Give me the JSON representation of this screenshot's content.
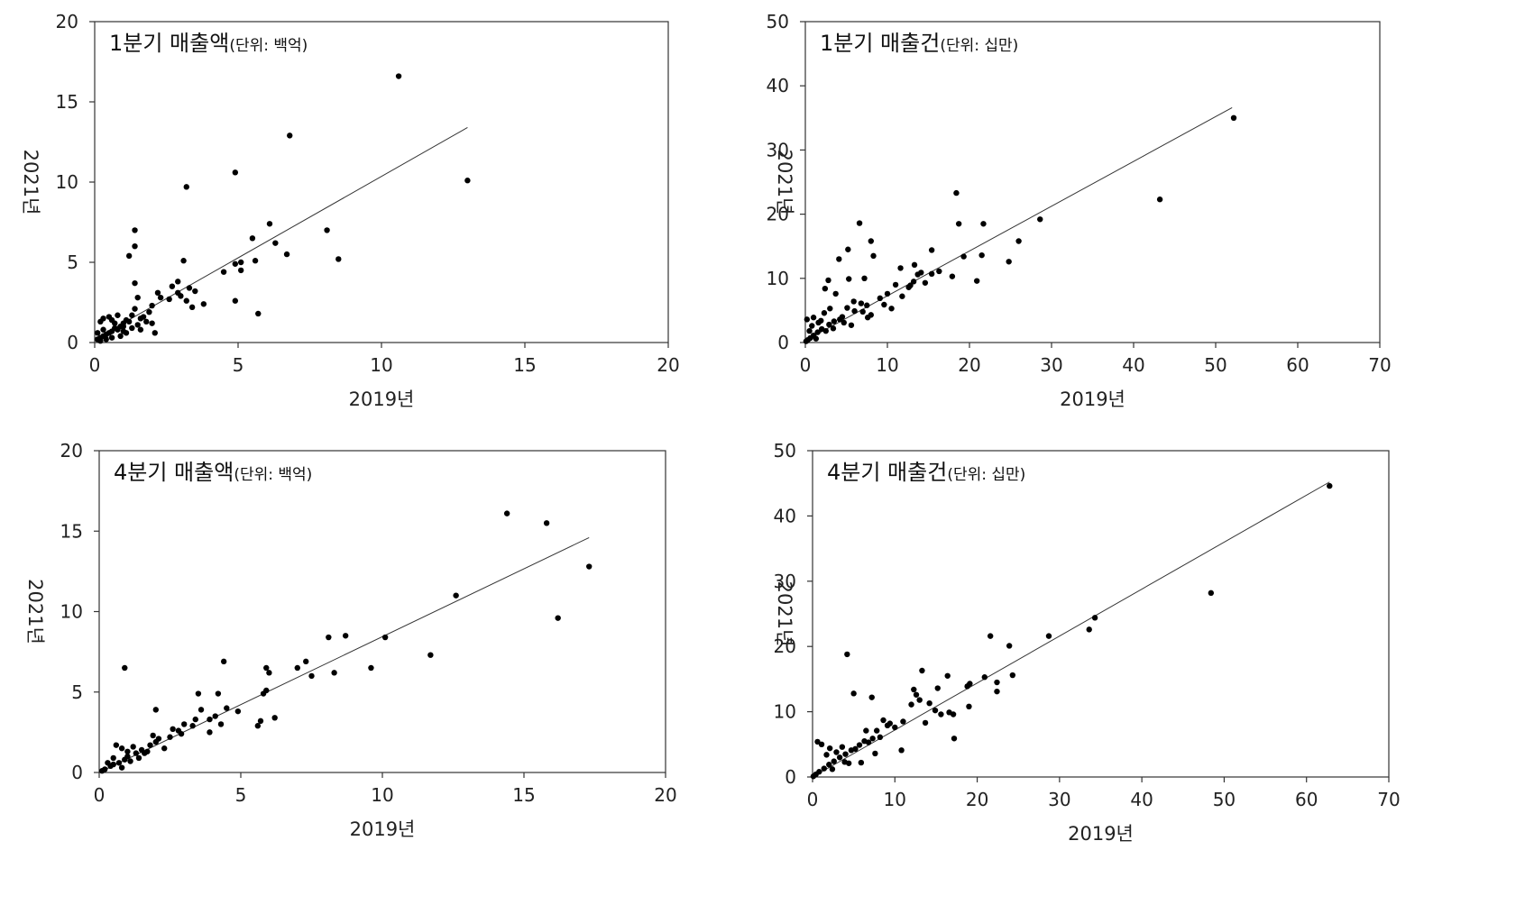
{
  "chart_data": [
    {
      "id": "q1_amount",
      "type": "scatter",
      "title": "1분기 매출액",
      "subtitle": "(단위: 백억)",
      "xlabel": "2019년",
      "ylabel": "2021년",
      "xlim": [
        0,
        20
      ],
      "ylim": [
        0,
        20
      ],
      "x_ticks": [
        "0",
        "5",
        "10",
        "15",
        "20"
      ],
      "y_ticks": [
        "0",
        "5",
        "10",
        "15",
        "20"
      ],
      "grid": false,
      "trendline": {
        "x": [
          0,
          13.0
        ],
        "y": [
          0.2,
          13.4
        ]
      },
      "points": [
        [
          10.6,
          16.6
        ],
        [
          6.8,
          12.9
        ],
        [
          13.0,
          10.1
        ],
        [
          4.9,
          10.6
        ],
        [
          3.2,
          9.7
        ],
        [
          8.1,
          7.0
        ],
        [
          6.1,
          7.4
        ],
        [
          1.4,
          7.0
        ],
        [
          5.5,
          6.5
        ],
        [
          6.3,
          6.2
        ],
        [
          1.4,
          6.0
        ],
        [
          1.2,
          5.4
        ],
        [
          6.7,
          5.5
        ],
        [
          8.5,
          5.2
        ],
        [
          3.1,
          5.1
        ],
        [
          5.6,
          5.1
        ],
        [
          4.9,
          4.9
        ],
        [
          5.1,
          5.0
        ],
        [
          5.1,
          4.5
        ],
        [
          4.5,
          4.4
        ],
        [
          2.9,
          3.8
        ],
        [
          1.4,
          3.7
        ],
        [
          2.7,
          3.5
        ],
        [
          3.3,
          3.4
        ],
        [
          2.9,
          3.1
        ],
        [
          2.2,
          3.1
        ],
        [
          3.0,
          2.9
        ],
        [
          2.3,
          2.8
        ],
        [
          1.5,
          2.8
        ],
        [
          3.5,
          3.2
        ],
        [
          3.2,
          2.6
        ],
        [
          2.6,
          2.7
        ],
        [
          4.9,
          2.6
        ],
        [
          3.8,
          2.4
        ],
        [
          2.0,
          2.3
        ],
        [
          3.4,
          2.2
        ],
        [
          1.4,
          2.1
        ],
        [
          5.7,
          1.8
        ],
        [
          1.9,
          1.9
        ],
        [
          1.7,
          1.6
        ],
        [
          1.6,
          1.5
        ],
        [
          1.3,
          1.7
        ],
        [
          1.1,
          1.4
        ],
        [
          1.2,
          1.3
        ],
        [
          1.0,
          1.2
        ],
        [
          1.0,
          1.0
        ],
        [
          0.9,
          1.0
        ],
        [
          0.8,
          0.8
        ],
        [
          0.7,
          0.9
        ],
        [
          0.6,
          0.7
        ],
        [
          0.5,
          0.6
        ],
        [
          0.4,
          0.5
        ],
        [
          0.3,
          0.4
        ],
        [
          0.2,
          0.3
        ],
        [
          0.1,
          0.2
        ],
        [
          0.3,
          1.5
        ],
        [
          0.2,
          1.3
        ],
        [
          0.5,
          1.6
        ],
        [
          0.6,
          1.4
        ],
        [
          0.8,
          1.7
        ],
        [
          0.7,
          1.2
        ],
        [
          1.0,
          0.7
        ],
        [
          1.3,
          0.9
        ],
        [
          1.5,
          1.1
        ],
        [
          1.8,
          1.3
        ],
        [
          1.6,
          0.8
        ],
        [
          2.1,
          0.6
        ],
        [
          2.0,
          1.2
        ],
        [
          0.4,
          0.2
        ],
        [
          0.2,
          0.1
        ],
        [
          0.9,
          0.4
        ],
        [
          1.1,
          0.6
        ],
        [
          0.3,
          0.8
        ],
        [
          0.6,
          0.3
        ],
        [
          0.1,
          0.6
        ]
      ]
    },
    {
      "id": "q1_count",
      "type": "scatter",
      "title": "1분기 매출건",
      "subtitle": "(단위: 십만)",
      "xlabel": "2019년",
      "ylabel": "2021년",
      "xlim": [
        0,
        70
      ],
      "ylim": [
        0,
        50
      ],
      "x_ticks": [
        "0",
        "10",
        "20",
        "30",
        "40",
        "50",
        "60",
        "70"
      ],
      "y_ticks": [
        "0",
        "10",
        "20",
        "30",
        "40",
        "50"
      ],
      "grid": false,
      "trendline": {
        "x": [
          0,
          52
        ],
        "y": [
          0.3,
          36.6
        ]
      },
      "points": [
        [
          52.2,
          35.0
        ],
        [
          43.2,
          22.3
        ],
        [
          28.6,
          19.2
        ],
        [
          26.0,
          15.8
        ],
        [
          24.8,
          12.6
        ],
        [
          21.7,
          18.5
        ],
        [
          21.5,
          13.6
        ],
        [
          20.9,
          9.6
        ],
        [
          19.3,
          13.4
        ],
        [
          18.7,
          18.5
        ],
        [
          18.4,
          23.3
        ],
        [
          17.9,
          10.3
        ],
        [
          15.4,
          14.4
        ],
        [
          15.4,
          10.7
        ],
        [
          14.6,
          9.3
        ],
        [
          13.7,
          10.6
        ],
        [
          13.2,
          9.5
        ],
        [
          12.6,
          8.6
        ],
        [
          11.6,
          11.6
        ],
        [
          11.8,
          7.2
        ],
        [
          11.0,
          9.0
        ],
        [
          10.5,
          5.3
        ],
        [
          10.0,
          7.6
        ],
        [
          8.3,
          13.5
        ],
        [
          8.0,
          15.8
        ],
        [
          7.2,
          10.0
        ],
        [
          6.6,
          18.6
        ],
        [
          5.2,
          14.5
        ],
        [
          5.3,
          9.9
        ],
        [
          4.1,
          13.0
        ],
        [
          2.8,
          9.7
        ],
        [
          2.4,
          8.4
        ],
        [
          3.7,
          7.6
        ],
        [
          5.9,
          6.4
        ],
        [
          7.5,
          5.8
        ],
        [
          8.0,
          4.3
        ],
        [
          6.0,
          4.9
        ],
        [
          4.5,
          4.0
        ],
        [
          3.5,
          3.3
        ],
        [
          2.9,
          2.8
        ],
        [
          2.0,
          2.1
        ],
        [
          1.5,
          1.6
        ],
        [
          1.0,
          1.1
        ],
        [
          0.6,
          0.7
        ],
        [
          0.3,
          0.4
        ],
        [
          0.1,
          0.2
        ],
        [
          0.2,
          3.6
        ],
        [
          1.0,
          3.9
        ],
        [
          1.6,
          3.1
        ],
        [
          2.3,
          4.6
        ],
        [
          3.0,
          5.3
        ],
        [
          4.2,
          3.6
        ],
        [
          5.1,
          5.4
        ],
        [
          6.8,
          6.1
        ],
        [
          7.0,
          4.8
        ],
        [
          7.6,
          3.9
        ],
        [
          9.1,
          6.9
        ],
        [
          9.6,
          5.9
        ],
        [
          12.8,
          8.9
        ],
        [
          13.3,
          12.1
        ],
        [
          14.1,
          10.9
        ],
        [
          16.3,
          11.1
        ],
        [
          0.8,
          2.6
        ],
        [
          1.3,
          0.6
        ],
        [
          2.5,
          1.8
        ],
        [
          3.4,
          2.2
        ],
        [
          4.7,
          3.1
        ],
        [
          5.6,
          2.7
        ],
        [
          0.5,
          1.8
        ],
        [
          1.9,
          3.4
        ]
      ]
    },
    {
      "id": "q4_amount",
      "type": "scatter",
      "title": "4분기 매출액",
      "subtitle": "(단위: 백억)",
      "xlabel": "2019년",
      "ylabel": "2021년",
      "xlim": [
        0,
        20
      ],
      "ylim": [
        0,
        20
      ],
      "x_ticks": [
        "0",
        "5",
        "10",
        "15",
        "20"
      ],
      "y_ticks": [
        "0",
        "5",
        "10",
        "15",
        "20"
      ],
      "grid": false,
      "trendline": {
        "x": [
          0,
          17.3
        ],
        "y": [
          0.0,
          14.6
        ]
      },
      "points": [
        [
          14.4,
          16.1
        ],
        [
          15.8,
          15.5
        ],
        [
          17.3,
          12.8
        ],
        [
          12.6,
          11.0
        ],
        [
          16.2,
          9.6
        ],
        [
          10.1,
          8.4
        ],
        [
          8.7,
          8.5
        ],
        [
          8.1,
          8.4
        ],
        [
          11.7,
          7.3
        ],
        [
          4.4,
          6.9
        ],
        [
          7.3,
          6.9
        ],
        [
          0.9,
          6.5
        ],
        [
          5.9,
          6.5
        ],
        [
          7.0,
          6.5
        ],
        [
          9.6,
          6.5
        ],
        [
          8.3,
          6.2
        ],
        [
          6.0,
          6.2
        ],
        [
          7.5,
          6.0
        ],
        [
          5.9,
          5.1
        ],
        [
          5.8,
          4.9
        ],
        [
          3.5,
          4.9
        ],
        [
          4.2,
          4.9
        ],
        [
          2.0,
          3.9
        ],
        [
          3.6,
          3.9
        ],
        [
          4.5,
          4.0
        ],
        [
          4.9,
          3.8
        ],
        [
          6.2,
          3.4
        ],
        [
          3.9,
          3.3
        ],
        [
          5.7,
          3.2
        ],
        [
          5.6,
          2.9
        ],
        [
          3.0,
          3.0
        ],
        [
          3.4,
          3.3
        ],
        [
          2.6,
          2.7
        ],
        [
          3.9,
          2.5
        ],
        [
          3.3,
          2.9
        ],
        [
          2.1,
          2.1
        ],
        [
          1.8,
          1.7
        ],
        [
          1.5,
          1.4
        ],
        [
          1.3,
          1.2
        ],
        [
          1.0,
          1.0
        ],
        [
          0.9,
          0.8
        ],
        [
          0.7,
          0.6
        ],
        [
          0.5,
          0.5
        ],
        [
          0.4,
          0.4
        ],
        [
          0.2,
          0.2
        ],
        [
          0.1,
          0.1
        ],
        [
          0.6,
          1.7
        ],
        [
          0.8,
          1.5
        ],
        [
          1.2,
          1.6
        ],
        [
          1.6,
          1.2
        ],
        [
          2.3,
          1.5
        ],
        [
          2.5,
          2.2
        ],
        [
          2.9,
          2.4
        ],
        [
          1.9,
          2.3
        ],
        [
          1.1,
          0.7
        ],
        [
          0.3,
          0.6
        ],
        [
          0.8,
          0.3
        ],
        [
          1.4,
          0.9
        ],
        [
          2.0,
          1.9
        ],
        [
          2.8,
          2.6
        ],
        [
          4.1,
          3.5
        ],
        [
          4.3,
          3.0
        ],
        [
          1.7,
          1.3
        ],
        [
          0.5,
          0.9
        ],
        [
          1.0,
          1.3
        ]
      ]
    },
    {
      "id": "q4_count",
      "type": "scatter",
      "title": "4분기 매출건",
      "subtitle": "(단위: 십만)",
      "xlabel": "2019년",
      "ylabel": "2021년",
      "xlim": [
        0,
        70
      ],
      "ylim": [
        0,
        50
      ],
      "x_ticks": [
        "0",
        "10",
        "20",
        "30",
        "40",
        "50",
        "60",
        "70"
      ],
      "y_ticks": [
        "0",
        "10",
        "20",
        "30",
        "40",
        "50"
      ],
      "grid": false,
      "trendline": {
        "x": [
          0,
          62.8
        ],
        "y": [
          0.0,
          45.2
        ]
      },
      "points": [
        [
          62.8,
          44.6
        ],
        [
          48.4,
          28.2
        ],
        [
          34.3,
          24.4
        ],
        [
          33.6,
          22.6
        ],
        [
          28.7,
          21.6
        ],
        [
          23.9,
          20.1
        ],
        [
          21.6,
          21.6
        ],
        [
          22.4,
          14.5
        ],
        [
          22.4,
          13.1
        ],
        [
          24.3,
          15.6
        ],
        [
          20.9,
          15.3
        ],
        [
          19.1,
          14.3
        ],
        [
          18.8,
          13.9
        ],
        [
          19.0,
          10.8
        ],
        [
          17.2,
          5.9
        ],
        [
          16.4,
          15.5
        ],
        [
          16.6,
          9.9
        ],
        [
          15.6,
          9.6
        ],
        [
          14.9,
          10.2
        ],
        [
          14.2,
          11.3
        ],
        [
          13.3,
          16.3
        ],
        [
          13.0,
          11.8
        ],
        [
          12.0,
          11.1
        ],
        [
          11.0,
          8.5
        ],
        [
          10.0,
          7.6
        ],
        [
          4.2,
          18.8
        ],
        [
          5.0,
          12.8
        ],
        [
          7.2,
          12.2
        ],
        [
          10.8,
          4.1
        ],
        [
          9.1,
          7.9
        ],
        [
          8.6,
          8.7
        ],
        [
          8.2,
          6.1
        ],
        [
          7.8,
          7.1
        ],
        [
          7.3,
          5.9
        ],
        [
          6.8,
          5.3
        ],
        [
          6.3,
          5.5
        ],
        [
          5.7,
          4.9
        ],
        [
          5.2,
          4.3
        ],
        [
          4.7,
          4.1
        ],
        [
          4.0,
          3.5
        ],
        [
          3.3,
          3.0
        ],
        [
          2.6,
          2.4
        ],
        [
          2.0,
          1.9
        ],
        [
          1.4,
          1.3
        ],
        [
          0.8,
          0.8
        ],
        [
          0.4,
          0.4
        ],
        [
          0.1,
          0.1
        ],
        [
          0.6,
          5.4
        ],
        [
          1.1,
          5.0
        ],
        [
          2.1,
          4.4
        ],
        [
          3.6,
          4.6
        ],
        [
          1.7,
          3.4
        ],
        [
          2.9,
          3.8
        ],
        [
          3.9,
          2.3
        ],
        [
          5.9,
          2.2
        ],
        [
          6.5,
          7.1
        ],
        [
          9.4,
          8.2
        ],
        [
          12.6,
          12.6
        ],
        [
          15.2,
          13.6
        ],
        [
          17.1,
          9.6
        ],
        [
          13.7,
          8.3
        ],
        [
          12.3,
          13.4
        ],
        [
          2.4,
          1.2
        ],
        [
          4.4,
          2.1
        ],
        [
          7.6,
          3.6
        ]
      ]
    }
  ]
}
